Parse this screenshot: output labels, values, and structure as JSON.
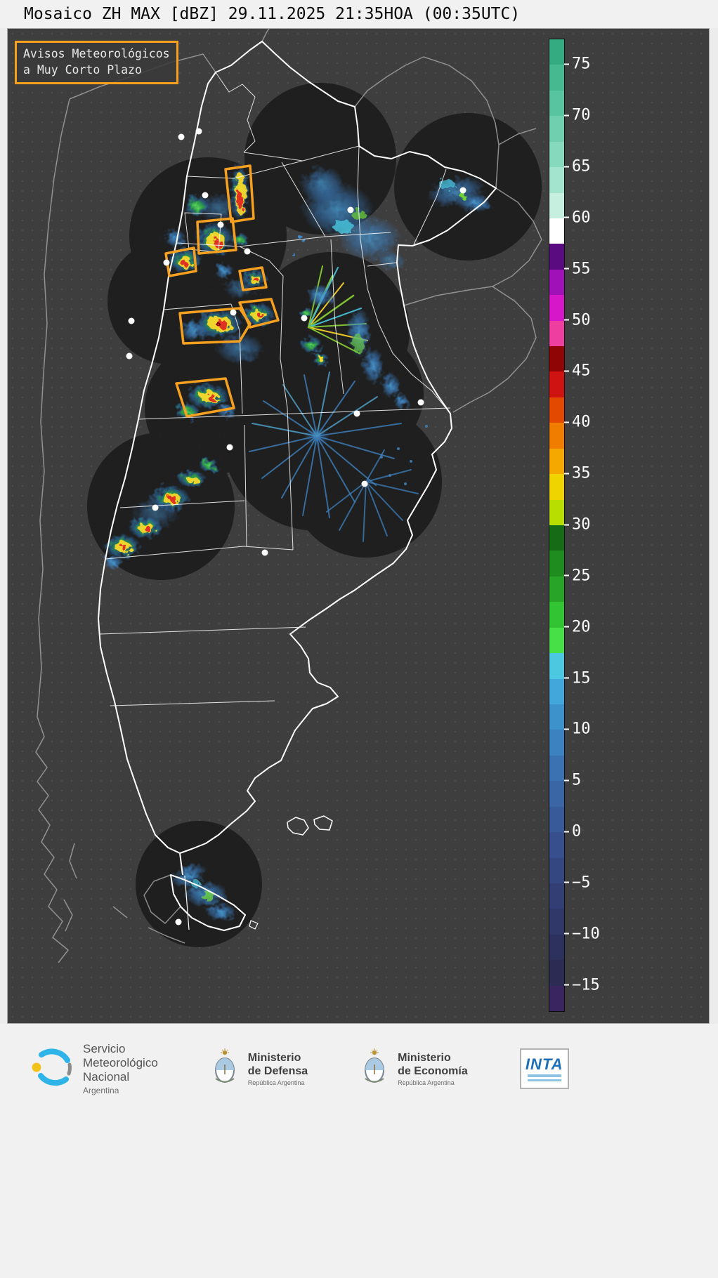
{
  "header": {
    "title": "Mosaico ZH MAX [dBZ] 29.11.2025 21:35HOA (00:35UTC)"
  },
  "map": {
    "warning_box": {
      "line1": "Avisos Meteorológicos",
      "line2": "a Muy Corto Plazo"
    }
  },
  "colorbar": {
    "units": "dBZ",
    "min": -17.5,
    "max": 77.5,
    "tick_values": [
      75,
      70,
      65,
      60,
      55,
      50,
      45,
      40,
      35,
      30,
      25,
      20,
      15,
      10,
      5,
      0,
      -5,
      -10,
      -15
    ],
    "tick_labels": [
      "75",
      "70",
      "65",
      "60",
      "55",
      "50",
      "45",
      "40",
      "35",
      "30",
      "25",
      "20",
      "15",
      "10",
      "5",
      "0",
      "−5",
      "−10",
      "−15"
    ],
    "segments": [
      "#35ab82",
      "#46b991",
      "#58c4a0",
      "#6fcfaf",
      "#87d9bd",
      "#a3e4ce",
      "#c6efe0",
      "#ffffff",
      "#5a0b80",
      "#a111b8",
      "#d517c9",
      "#ee3fa0",
      "#8f0404",
      "#cf1212",
      "#e34a00",
      "#f07d00",
      "#f5a800",
      "#f0d400",
      "#b8dd00",
      "#166b16",
      "#1f8c1f",
      "#28a428",
      "#33c433",
      "#47e047",
      "#4cc8e0",
      "#42a8dc",
      "#3e92cc",
      "#3d82c0",
      "#3b73b2",
      "#3a66a6",
      "#395a99",
      "#37508d",
      "#354781",
      "#333e75",
      "#303869",
      "#2d315d",
      "#2b2b53",
      "#3a2560"
    ]
  },
  "colors": {
    "panel_background": "#3e3e3e",
    "warning_accent": "#f5a01e",
    "country_border": "#ffffff",
    "neighbor_border": "#9a9a9a",
    "radar_footprint": "#191919"
  },
  "footer": {
    "smn": {
      "line1": "Servicio",
      "line2": "Meteorológico",
      "line3": "Nacional",
      "line4": "Argentina"
    },
    "defensa": {
      "line1": "Ministerio",
      "line2": "de Defensa",
      "sub": "República Argentina"
    },
    "economia": {
      "line1": "Ministerio",
      "line2": "de Economía",
      "sub": "República Argentina"
    },
    "inta": {
      "label": "INTA"
    }
  }
}
